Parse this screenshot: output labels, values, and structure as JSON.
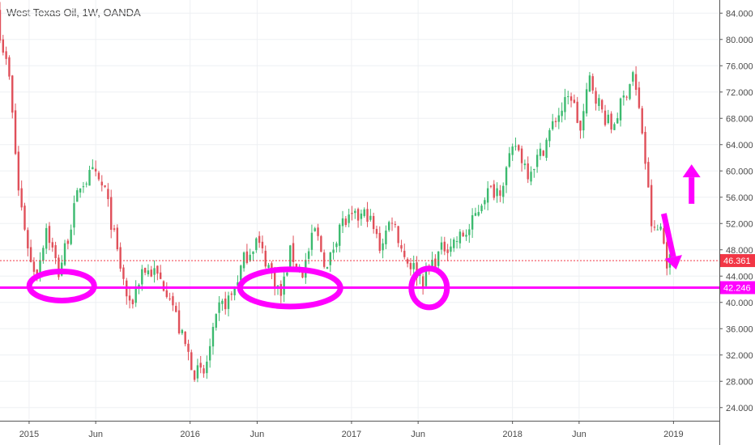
{
  "chart_data": {
    "type": "candlestick",
    "title": "West Texas Oil, 1W, OANDA",
    "xlabel": "",
    "ylabel": "",
    "ylim": [
      22,
      86
    ],
    "y_ticks": [
      24,
      28,
      32,
      36,
      40,
      44,
      48,
      52,
      56,
      60,
      64,
      68,
      72,
      76,
      80,
      84
    ],
    "x_ticks": [
      {
        "label": "2015",
        "date": "2015-01-01"
      },
      {
        "label": "Jun",
        "date": "2015-06-01"
      },
      {
        "label": "2016",
        "date": "2016-01-01"
      },
      {
        "label": "Jun",
        "date": "2016-06-01"
      },
      {
        "label": "2017",
        "date": "2017-01-01"
      },
      {
        "label": "Jun",
        "date": "2017-06-01"
      },
      {
        "label": "2018",
        "date": "2018-01-01"
      },
      {
        "label": "Jun",
        "date": "2018-06-01"
      },
      {
        "label": "2019",
        "date": "2019-01-01"
      }
    ],
    "x_range": [
      "2014-10-27",
      "2019-04-15"
    ],
    "grid": true,
    "colors": {
      "up": "#3cba6f",
      "down": "#e0505a",
      "annotation": "#ff00ff",
      "last_price": "#f23645"
    },
    "price_path": [
      [
        "2014-10-27",
        83.5
      ],
      [
        "2014-11-24",
        74
      ],
      [
        "2014-12-15",
        57
      ],
      [
        "2015-01-12",
        46
      ],
      [
        "2015-01-26",
        44.5
      ],
      [
        "2015-02-16",
        51.5
      ],
      [
        "2015-03-16",
        44.5
      ],
      [
        "2015-04-06",
        50
      ],
      [
        "2015-05-04",
        58
      ],
      [
        "2015-06-01",
        59.5
      ],
      [
        "2015-06-29",
        57
      ],
      [
        "2015-07-27",
        47.5
      ],
      [
        "2015-08-24",
        39
      ],
      [
        "2015-09-21",
        45
      ],
      [
        "2015-10-19",
        44.5
      ],
      [
        "2015-11-23",
        41.5
      ],
      [
        "2015-12-14",
        36
      ],
      [
        "2016-01-18",
        29.5
      ],
      [
        "2016-02-08",
        29
      ],
      [
        "2016-03-14",
        39
      ],
      [
        "2016-04-11",
        41
      ],
      [
        "2016-05-09",
        46.5
      ],
      [
        "2016-06-06",
        49.5
      ],
      [
        "2016-07-04",
        45.5
      ],
      [
        "2016-08-01",
        41
      ],
      [
        "2016-08-22",
        47.5
      ],
      [
        "2016-09-19",
        44.5
      ],
      [
        "2016-10-17",
        51
      ],
      [
        "2016-11-14",
        45
      ],
      [
        "2016-12-12",
        52
      ],
      [
        "2017-01-09",
        52.5
      ],
      [
        "2017-02-13",
        53.5
      ],
      [
        "2017-03-13",
        48.5
      ],
      [
        "2017-04-10",
        53
      ],
      [
        "2017-05-08",
        47
      ],
      [
        "2017-06-19",
        43.5
      ],
      [
        "2017-07-10",
        46
      ],
      [
        "2017-08-07",
        48.5
      ],
      [
        "2017-09-04",
        49.5
      ],
      [
        "2017-10-02",
        51
      ],
      [
        "2017-11-06",
        56.5
      ],
      [
        "2017-12-11",
        57.5
      ],
      [
        "2018-01-15",
        64
      ],
      [
        "2018-02-12",
        60
      ],
      [
        "2018-03-12",
        62.5
      ],
      [
        "2018-04-16",
        68
      ],
      [
        "2018-05-21",
        71.5
      ],
      [
        "2018-06-11",
        66
      ],
      [
        "2018-07-02",
        74
      ],
      [
        "2018-07-30",
        69
      ],
      [
        "2018-08-20",
        66.5
      ],
      [
        "2018-09-17",
        71
      ],
      [
        "2018-10-08",
        75
      ],
      [
        "2018-10-29",
        66
      ],
      [
        "2018-11-19",
        52
      ],
      [
        "2018-11-26",
        50.5
      ],
      [
        "2018-12-10",
        51.5
      ],
      [
        "2018-12-24",
        46.4
      ]
    ],
    "last_price": {
      "label": "46.361",
      "value": 46.361
    },
    "annotations": {
      "support_line": {
        "label": "42.246",
        "value": 42.246
      },
      "circles": [
        {
          "date": "2015-03-16",
          "value": 42.5
        },
        {
          "date": "2016-08-15",
          "value": 42.2
        },
        {
          "date": "2017-06-26",
          "value": 42.2
        }
      ],
      "arrows": [
        {
          "direction": "down",
          "from": [
            "2018-12-10",
            53.5
          ],
          "to": [
            "2019-01-07",
            45
          ]
        },
        {
          "direction": "up",
          "from": [
            "2019-02-11",
            55
          ],
          "to": [
            "2019-02-11",
            61
          ]
        }
      ]
    }
  }
}
